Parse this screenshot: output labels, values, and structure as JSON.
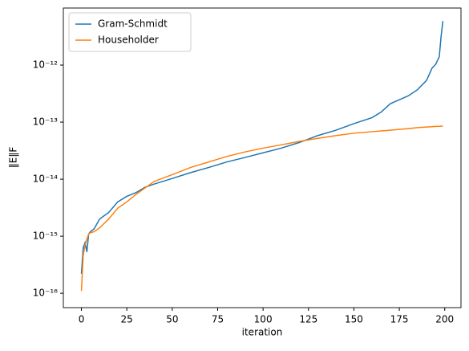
{
  "chart_data": {
    "type": "line",
    "x_label": "iteration",
    "y_label": "‖E‖F",
    "x": [
      0,
      1,
      2,
      3,
      4,
      5,
      7,
      10,
      15,
      20,
      25,
      30,
      35,
      40,
      50,
      60,
      70,
      80,
      90,
      100,
      110,
      120,
      130,
      140,
      150,
      160,
      165,
      170,
      180,
      185,
      190,
      193,
      195,
      197,
      198,
      199
    ],
    "series": [
      {
        "name": "Gram-Schmidt",
        "color": "#1f77b4",
        "values": [
          2.2e-16,
          6.3e-16,
          7.7e-16,
          5.3e-16,
          1.1e-15,
          1.2e-15,
          1.35e-15,
          2e-15,
          2.6e-15,
          4e-15,
          5e-15,
          5.8e-15,
          7.2e-15,
          8.2e-15,
          1.03e-14,
          1.3e-14,
          1.6e-14,
          2e-14,
          2.4e-14,
          2.9e-14,
          3.5e-14,
          4.4e-14,
          5.8e-14,
          7.2e-14,
          9.4e-14,
          1.2e-13,
          1.5e-13,
          2.1e-13,
          2.9e-13,
          3.7e-13,
          5.4e-13,
          8.8e-13,
          1.03e-12,
          1.4e-12,
          3.2e-12,
          5.9e-12
        ]
      },
      {
        "name": "Householder",
        "color": "#ff7f0e",
        "values": [
          1.1e-16,
          4.6e-16,
          7e-16,
          8.8e-16,
          1.1e-15,
          1.15e-15,
          1.2e-15,
          1.4e-15,
          2e-15,
          3.1e-15,
          4e-15,
          5.4e-15,
          7e-15,
          9.1e-15,
          1.2e-14,
          1.6e-14,
          2e-14,
          2.5e-14,
          3e-14,
          3.5e-14,
          4e-14,
          4.6e-14,
          5.2e-14,
          5.8e-14,
          6.4e-14,
          6.8e-14,
          7e-14,
          7.2e-14,
          7.7e-14,
          8e-14,
          8.2e-14,
          8.3e-14,
          8.4e-14,
          8.45e-14,
          8.5e-14,
          8.5e-14
        ]
      }
    ],
    "xlim": [
      -9.95,
      208.95
    ],
    "xticks": [
      0,
      25,
      50,
      75,
      100,
      125,
      150,
      175,
      200
    ],
    "ylim": [
      5.6e-17,
      1e-11
    ],
    "y_scale": "log",
    "yticks": [
      {
        "value": 1e-16,
        "label": "10⁻¹⁶"
      },
      {
        "value": 1e-15,
        "label": "10⁻¹⁵"
      },
      {
        "value": 1e-14,
        "label": "10⁻¹⁴"
      },
      {
        "value": 1e-13,
        "label": "10⁻¹³"
      },
      {
        "value": 1e-12,
        "label": "10⁻¹²"
      }
    ],
    "legend": "upper left"
  }
}
